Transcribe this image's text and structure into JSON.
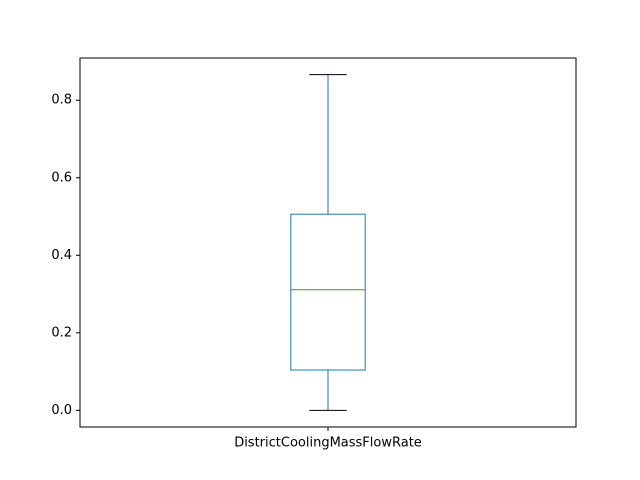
{
  "chart_data": {
    "type": "box",
    "title": "",
    "xlabel": "",
    "ylabel": "",
    "categories": [
      "DistrictCoolingMassFlowRate"
    ],
    "boxes": [
      {
        "category": "DistrictCoolingMassFlowRate",
        "whisker_low": 0.0,
        "q1": 0.104,
        "median": 0.311,
        "q3": 0.506,
        "whisker_high": 0.866
      }
    ],
    "ylim": [
      -0.043,
      0.909
    ],
    "yticks": [
      0.0,
      0.2,
      0.4,
      0.6,
      0.8
    ],
    "ytick_labels": [
      "0.0",
      "0.2",
      "0.4",
      "0.6",
      "0.8"
    ],
    "grid": false,
    "legend": "none",
    "colors": {
      "box": "#1f77b4",
      "whisker": "#1f77b4",
      "cap": "#000000",
      "median": "#2ca02c",
      "axes": "#000000"
    }
  }
}
